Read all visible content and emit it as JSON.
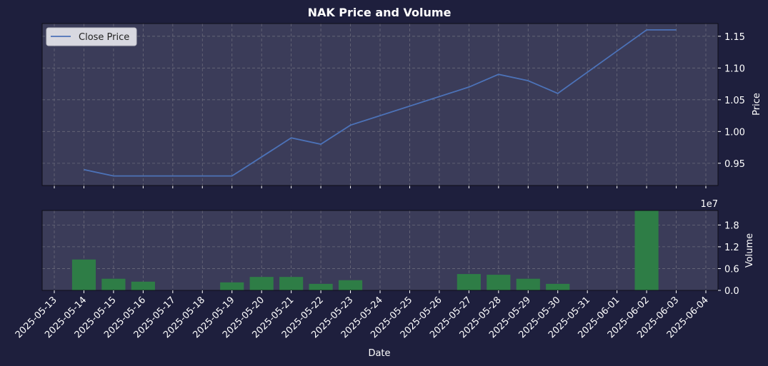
{
  "chart_data": [
    {
      "type": "line",
      "title": "NAK Price and Volume",
      "ylabel": "Price",
      "legend": {
        "label": "Close Price",
        "placement": "top-left"
      },
      "grid": true,
      "colors": {
        "line": "#4c72b8",
        "background": "#3b3c59",
        "figure": "#1e1f3d"
      },
      "ylim": [
        0.915,
        1.17
      ],
      "yticks": [
        0.95,
        1.0,
        1.05,
        1.1,
        1.15
      ],
      "ytick_labels": [
        "0.95",
        "1.00",
        "1.05",
        "1.10",
        "1.15"
      ],
      "series": [
        {
          "x": [
            "2025-05-14",
            "2025-05-15",
            "2025-05-16",
            "2025-05-19",
            "2025-05-20",
            "2025-05-21",
            "2025-05-22",
            "2025-05-23",
            "2025-05-27",
            "2025-05-28",
            "2025-05-29",
            "2025-05-30",
            "2025-06-02",
            "2025-06-03"
          ],
          "values": [
            0.94,
            0.93,
            0.93,
            0.93,
            0.96,
            0.99,
            0.98,
            1.01,
            1.07,
            1.09,
            1.08,
            1.06,
            1.16,
            1.16
          ]
        }
      ]
    },
    {
      "type": "bar",
      "ylabel": "Volume",
      "xlabel": "Date",
      "offset_label": "1e7",
      "grid": true,
      "colors": {
        "bar": "#2e7d46"
      },
      "ylim": [
        0,
        2.2
      ],
      "yticks": [
        0,
        0.6,
        1.2,
        1.8
      ],
      "ytick_labels": [
        "0.0",
        "0.6",
        "1.2",
        "1.8"
      ],
      "x": [
        "2025-05-14",
        "2025-05-15",
        "2025-05-16",
        "2025-05-19",
        "2025-05-20",
        "2025-05-21",
        "2025-05-22",
        "2025-05-23",
        "2025-05-27",
        "2025-05-28",
        "2025-05-29",
        "2025-05-30",
        "2025-06-02"
      ],
      "values": [
        0.85,
        0.32,
        0.24,
        0.22,
        0.37,
        0.37,
        0.18,
        0.28,
        0.45,
        0.43,
        0.32,
        0.18,
        2.2
      ],
      "xtick_labels": [
        "2025-05-13",
        "2025-05-14",
        "2025-05-15",
        "2025-05-16",
        "2025-05-17",
        "2025-05-18",
        "2025-05-19",
        "2025-05-20",
        "2025-05-21",
        "2025-05-22",
        "2025-05-23",
        "2025-05-24",
        "2025-05-25",
        "2025-05-26",
        "2025-05-27",
        "2025-05-28",
        "2025-05-29",
        "2025-05-30",
        "2025-05-31",
        "2025-06-01",
        "2025-06-02",
        "2025-06-03",
        "2025-06-04"
      ]
    }
  ]
}
